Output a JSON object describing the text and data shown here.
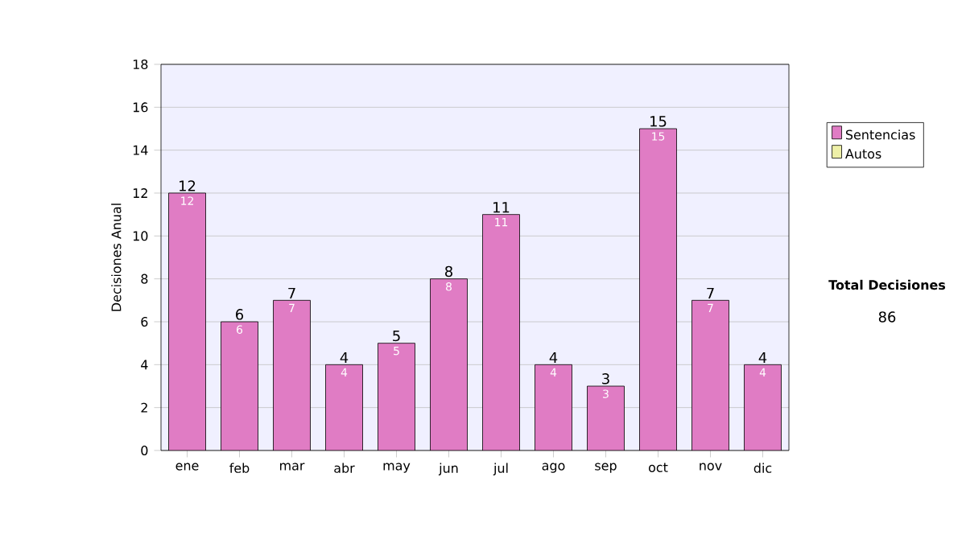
{
  "chart_data": {
    "type": "bar",
    "ylabel": "Decisiones Anual",
    "categories": [
      "ene",
      "feb",
      "mar",
      "abr",
      "may",
      "jun",
      "jul",
      "ago",
      "sep",
      "oct",
      "nov",
      "dic"
    ],
    "series": [
      {
        "name": "Sentencias",
        "color": "#e07cc4",
        "values": [
          12,
          6,
          7,
          4,
          5,
          8,
          11,
          4,
          3,
          15,
          7,
          4
        ],
        "value_labels": [
          "12",
          "6",
          "7",
          "4",
          "5",
          "8",
          "11",
          "4",
          "3",
          "15",
          "7",
          "4"
        ]
      },
      {
        "name": "Autos",
        "color": "#eef0a8",
        "values": [
          0,
          0,
          0,
          0,
          0,
          0,
          0,
          0,
          0,
          0,
          0,
          0
        ]
      }
    ],
    "stacked": true,
    "totals": [
      "12",
      "6",
      "7",
      "4",
      "5",
      "8",
      "11",
      "4",
      "3",
      "15",
      "7",
      "4"
    ],
    "ylim": [
      0,
      18
    ],
    "yticks": [
      0,
      2,
      4,
      6,
      8,
      10,
      12,
      14,
      16,
      18
    ],
    "grid": "y",
    "legend": "right",
    "annotations": [
      "Total Decisiones",
      "86"
    ]
  }
}
